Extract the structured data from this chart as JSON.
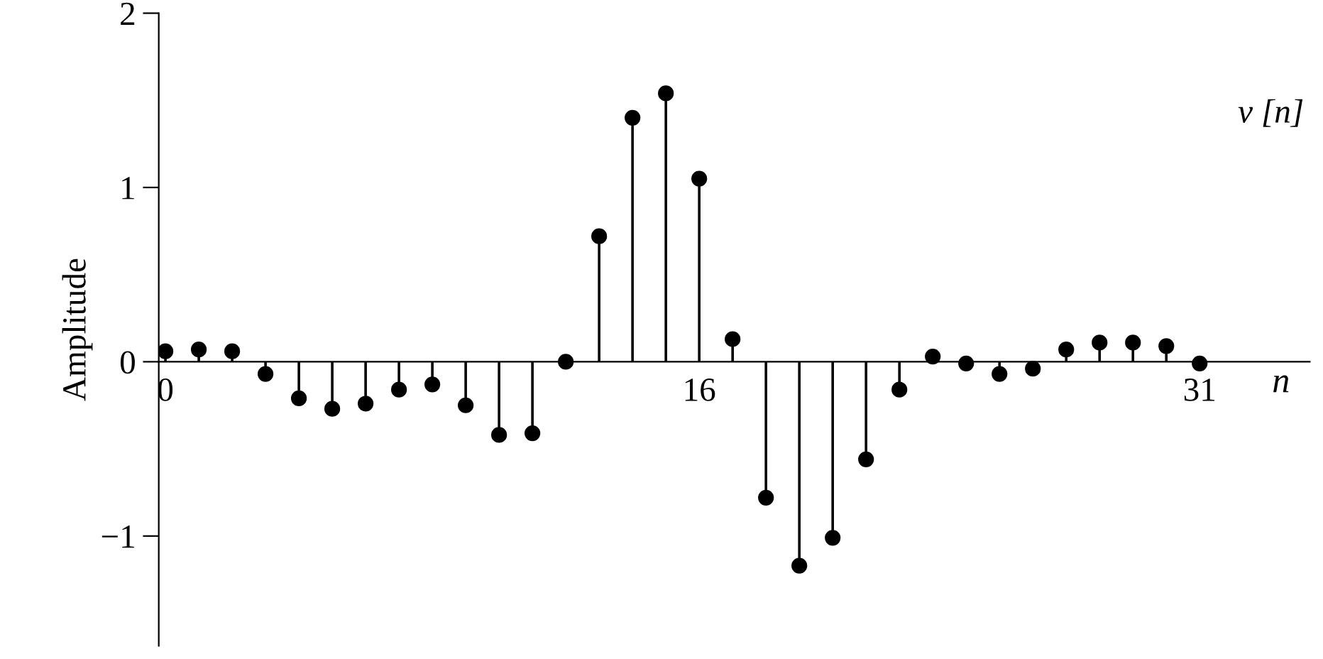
{
  "chart_data": {
    "type": "lollipop",
    "ylabel": "Amplitude",
    "xlabel": "n",
    "annotations": [
      "v [n]"
    ],
    "x": [
      0,
      1,
      2,
      3,
      4,
      5,
      6,
      7,
      8,
      9,
      10,
      11,
      12,
      13,
      14,
      15,
      16,
      17,
      18,
      19,
      20,
      21,
      22,
      23,
      24,
      25,
      26,
      27,
      28,
      29,
      30,
      31
    ],
    "values": [
      0.06,
      0.07,
      0.06,
      -0.07,
      -0.21,
      -0.27,
      -0.24,
      -0.16,
      -0.13,
      -0.25,
      -0.42,
      -0.41,
      0.0,
      0.72,
      1.4,
      1.54,
      1.05,
      0.13,
      -0.78,
      -1.17,
      -1.01,
      -0.56,
      -0.16,
      0.03,
      -0.01,
      -0.07,
      -0.04,
      0.07,
      0.11,
      0.11,
      0.09,
      -0.01
    ],
    "color": "#000000",
    "marker": "circle",
    "grid": false,
    "legend": false,
    "xlim": [
      -0.2,
      34.3
    ],
    "xticks": [
      0,
      16,
      31
    ],
    "ylim": [
      -1.63,
      2
    ],
    "yticks": [
      2,
      1,
      0,
      {
        "value": -1,
        "label": "−1"
      }
    ]
  }
}
